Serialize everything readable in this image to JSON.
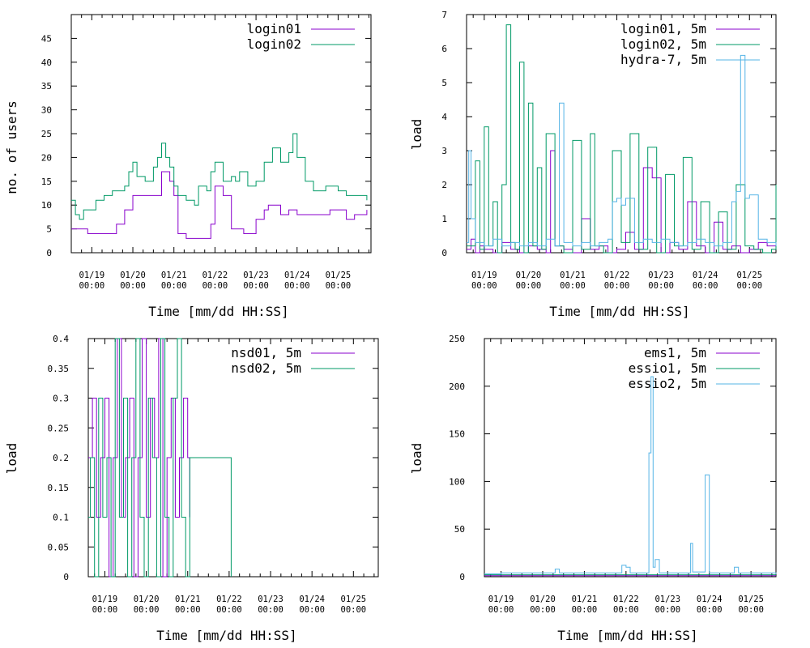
{
  "palette": {
    "login01": "#8800cc",
    "login02": "#009966",
    "hydra": "#55b4e6",
    "frame": "#000000"
  },
  "chart_data": [
    {
      "type": "line",
      "title": "",
      "xlabel": "Time [mm/dd HH:SS]",
      "ylabel": "no. of users",
      "ylim": [
        0,
        50
      ],
      "xlim": [
        -0.5,
        6.8
      ],
      "yticks": [
        0,
        5,
        10,
        15,
        20,
        25,
        30,
        35,
        40,
        45
      ],
      "yticklabels": [
        "0",
        "5",
        "10",
        "15",
        "20",
        "25",
        "30",
        "35",
        "40",
        "45"
      ],
      "xticks": [
        0,
        1,
        2,
        3,
        4,
        5,
        6
      ],
      "xticklabels": [
        [
          "01/19",
          "00:00"
        ],
        [
          "01/20",
          "00:00"
        ],
        [
          "01/21",
          "00:00"
        ],
        [
          "01/22",
          "00:00"
        ],
        [
          "01/23",
          "00:00"
        ],
        [
          "01/24",
          "00:00"
        ],
        [
          "01/25",
          "00:00"
        ]
      ],
      "legend_position": "top-right",
      "series": [
        {
          "name": "login01",
          "color": "#8800cc",
          "x": [
            -0.5,
            -0.2,
            -0.1,
            0.3,
            0.6,
            0.8,
            1.0,
            1.4,
            1.7,
            1.9,
            2.0,
            2.1,
            2.3,
            2.5,
            2.9,
            3.0,
            3.2,
            3.4,
            3.7,
            3.8,
            4.0,
            4.2,
            4.3,
            4.5,
            4.6,
            4.8,
            5.0,
            5.5,
            5.8,
            6.2,
            6.4,
            6.7
          ],
          "y": [
            5,
            5,
            4,
            4,
            6,
            9,
            12,
            12,
            17,
            15,
            12,
            4,
            3,
            3,
            6,
            14,
            12,
            5,
            4,
            4,
            7,
            9,
            10,
            10,
            8,
            9,
            8,
            8,
            9,
            7,
            8,
            9
          ]
        },
        {
          "name": "login02",
          "color": "#009966",
          "x": [
            -0.5,
            -0.4,
            -0.3,
            -0.2,
            0.1,
            0.3,
            0.5,
            0.8,
            0.9,
            1.0,
            1.1,
            1.3,
            1.5,
            1.6,
            1.7,
            1.8,
            1.9,
            2.0,
            2.1,
            2.3,
            2.5,
            2.6,
            2.8,
            2.9,
            3.0,
            3.2,
            3.4,
            3.5,
            3.6,
            3.8,
            4.0,
            4.2,
            4.4,
            4.6,
            4.8,
            4.9,
            5.0,
            5.2,
            5.4,
            5.7,
            6.0,
            6.2,
            6.4,
            6.7
          ],
          "y": [
            11,
            8,
            7,
            9,
            11,
            12,
            13,
            14,
            17,
            19,
            16,
            15,
            18,
            20,
            23,
            20,
            18,
            14,
            12,
            11,
            10,
            14,
            13,
            17,
            19,
            15,
            16,
            15,
            17,
            14,
            15,
            19,
            22,
            19,
            21,
            25,
            20,
            15,
            13,
            14,
            13,
            12,
            12,
            11
          ]
        }
      ]
    },
    {
      "type": "line",
      "title": "",
      "xlabel": "Time [mm/dd HH:SS]",
      "ylabel": "load",
      "ylim": [
        0,
        7
      ],
      "xlim": [
        -0.4,
        6.6
      ],
      "yticks": [
        0,
        1,
        2,
        3,
        4,
        5,
        6,
        7
      ],
      "yticklabels": [
        "0",
        "1",
        "2",
        "3",
        "4",
        "5",
        "6",
        "7"
      ],
      "xticks": [
        0,
        1,
        2,
        3,
        4,
        5,
        6
      ],
      "xticklabels": [
        [
          "01/19",
          "00:00"
        ],
        [
          "01/20",
          "00:00"
        ],
        [
          "01/21",
          "00:00"
        ],
        [
          "01/22",
          "00:00"
        ],
        [
          "01/23",
          "00:00"
        ],
        [
          "01/24",
          "00:00"
        ],
        [
          "01/25",
          "00:00"
        ]
      ],
      "legend_position": "top-right",
      "series": [
        {
          "name": "login01, 5m",
          "color": "#8800cc",
          "x": [
            -0.4,
            -0.3,
            -0.2,
            -0.1,
            0.0,
            0.2,
            0.4,
            0.6,
            0.8,
            1.0,
            1.2,
            1.4,
            1.5,
            1.6,
            1.8,
            2.0,
            2.2,
            2.4,
            2.6,
            2.8,
            3.0,
            3.2,
            3.4,
            3.6,
            3.8,
            4.0,
            4.2,
            4.4,
            4.6,
            4.8,
            5.0,
            5.2,
            5.4,
            5.6,
            5.8,
            6.0,
            6.2,
            6.4,
            6.6
          ],
          "y": [
            0.1,
            0.4,
            0.0,
            0.2,
            0.1,
            0.0,
            0.3,
            0.1,
            0.0,
            0.2,
            0.1,
            0.0,
            3.0,
            0.2,
            0.1,
            0.0,
            1.0,
            0.1,
            0.2,
            0.0,
            0.1,
            0.6,
            0.1,
            2.5,
            2.2,
            0.0,
            0.3,
            0.1,
            1.5,
            0.2,
            0.0,
            0.9,
            0.1,
            0.2,
            0.0,
            0.1,
            0.3,
            0.2,
            1.0
          ]
        },
        {
          "name": "login02, 5m",
          "color": "#009966",
          "x": [
            -0.4,
            -0.2,
            -0.1,
            0.0,
            0.1,
            0.2,
            0.3,
            0.4,
            0.5,
            0.6,
            0.7,
            0.8,
            0.9,
            1.0,
            1.1,
            1.2,
            1.3,
            1.4,
            1.6,
            1.8,
            2.0,
            2.2,
            2.4,
            2.5,
            2.7,
            2.9,
            3.1,
            3.3,
            3.5,
            3.7,
            3.9,
            4.1,
            4.3,
            4.5,
            4.7,
            4.9,
            5.1,
            5.3,
            5.5,
            5.7,
            5.9,
            6.1,
            6.3,
            6.5,
            6.6
          ],
          "y": [
            0.2,
            2.7,
            0.1,
            3.7,
            0.2,
            1.5,
            0.0,
            2.0,
            6.7,
            0.3,
            0.1,
            5.6,
            0.0,
            4.4,
            0.2,
            2.5,
            0.1,
            3.5,
            0.2,
            0.0,
            3.3,
            0.1,
            3.5,
            0.2,
            0.0,
            3.0,
            0.3,
            3.5,
            0.1,
            3.1,
            0.0,
            2.3,
            0.2,
            2.8,
            0.1,
            1.5,
            0.0,
            1.2,
            0.1,
            2.0,
            0.2,
            0.1,
            0.0,
            0.1,
            2.0
          ]
        },
        {
          "name": "hydra-7, 5m",
          "color": "#55b4e6",
          "x": [
            -0.4,
            -0.35,
            -0.3,
            -0.2,
            0.0,
            0.2,
            0.4,
            0.6,
            0.8,
            1.0,
            1.2,
            1.4,
            1.6,
            1.7,
            1.8,
            2.0,
            2.2,
            2.4,
            2.6,
            2.8,
            2.9,
            3.0,
            3.1,
            3.2,
            3.4,
            3.6,
            3.8,
            4.0,
            4.2,
            4.4,
            4.6,
            4.8,
            5.0,
            5.2,
            5.4,
            5.6,
            5.7,
            5.8,
            5.9,
            6.0,
            6.2,
            6.4,
            6.6
          ],
          "y": [
            0.3,
            3.0,
            1.0,
            0.3,
            0.2,
            0.4,
            0.2,
            0.3,
            0.2,
            0.3,
            0.2,
            0.4,
            0.2,
            4.4,
            0.3,
            0.2,
            0.3,
            0.2,
            0.3,
            0.4,
            1.5,
            1.6,
            1.4,
            1.6,
            0.3,
            0.4,
            0.3,
            0.4,
            0.3,
            0.2,
            0.3,
            0.4,
            0.3,
            0.2,
            0.3,
            1.5,
            1.8,
            5.8,
            1.6,
            1.7,
            0.4,
            0.3,
            0.2
          ]
        }
      ]
    },
    {
      "type": "line",
      "title": "",
      "xlabel": "Time [mm/dd HH:SS]",
      "ylabel": "load",
      "ylim": [
        0,
        0.4
      ],
      "xlim": [
        -0.4,
        6.6
      ],
      "yticks": [
        0,
        0.05,
        0.1,
        0.15,
        0.2,
        0.25,
        0.3,
        0.35,
        0.4
      ],
      "yticklabels": [
        "0",
        "0.05",
        "0.1",
        "0.15",
        "0.2",
        "0.25",
        "0.3",
        "0.35",
        "0.4"
      ],
      "xticks": [
        0,
        1,
        2,
        3,
        4,
        5,
        6
      ],
      "xticklabels": [
        [
          "01/19",
          "00:00"
        ],
        [
          "01/20",
          "00:00"
        ],
        [
          "01/21",
          "00:00"
        ],
        [
          "01/22",
          "00:00"
        ],
        [
          "01/23",
          "00:00"
        ],
        [
          "01/24",
          "00:00"
        ],
        [
          "01/25",
          "00:00"
        ]
      ],
      "legend_position": "top-right",
      "series": [
        {
          "name": "nsd01, 5m",
          "color": "#8800cc",
          "x": [
            -0.4,
            -0.3,
            -0.2,
            -0.1,
            0.0,
            0.1,
            0.2,
            0.3,
            0.4,
            0.5,
            0.6,
            0.7,
            0.8,
            0.9,
            1.0,
            1.1,
            1.2,
            1.3,
            1.4,
            1.5,
            1.6,
            1.7,
            1.8,
            1.9,
            2.0,
            2.05
          ],
          "y": [
            0.2,
            0.3,
            0.1,
            0.2,
            0.3,
            0.0,
            0.2,
            0.4,
            0.1,
            0.2,
            0.3,
            0.0,
            0.2,
            0.4,
            0.1,
            0.3,
            0.2,
            0.4,
            0.0,
            0.2,
            0.3,
            0.1,
            0.2,
            0.3,
            0.2,
            0.1
          ]
        },
        {
          "name": "nsd02, 5m",
          "color": "#009966",
          "x": [
            -0.4,
            -0.35,
            -0.25,
            -0.15,
            -0.05,
            0.05,
            0.15,
            0.25,
            0.35,
            0.45,
            0.55,
            0.65,
            0.75,
            0.85,
            0.95,
            1.05,
            1.15,
            1.25,
            1.35,
            1.45,
            1.55,
            1.65,
            1.75,
            1.85,
            1.95,
            2.05,
            2.5,
            3.0,
            3.05
          ],
          "y": [
            0.1,
            0.2,
            0.0,
            0.3,
            0.1,
            0.2,
            0.0,
            0.4,
            0.1,
            0.3,
            0.0,
            0.2,
            0.4,
            0.1,
            0.0,
            0.3,
            0.2,
            0.0,
            0.4,
            0.1,
            0.0,
            0.3,
            0.4,
            0.1,
            0.0,
            0.2,
            0.2,
            0.2,
            0.0
          ]
        }
      ]
    },
    {
      "type": "line",
      "title": "",
      "xlabel": "Time [mm/dd HH:SS]",
      "ylabel": "load",
      "ylim": [
        0,
        250
      ],
      "xlim": [
        -0.4,
        6.6
      ],
      "yticks": [
        0,
        50,
        100,
        150,
        200,
        250
      ],
      "yticklabels": [
        "0",
        "50",
        "100",
        "150",
        "200",
        "250"
      ],
      "xticks": [
        0,
        1,
        2,
        3,
        4,
        5,
        6
      ],
      "xticklabels": [
        [
          "01/19",
          "00:00"
        ],
        [
          "01/20",
          "00:00"
        ],
        [
          "01/21",
          "00:00"
        ],
        [
          "01/22",
          "00:00"
        ],
        [
          "01/23",
          "00:00"
        ],
        [
          "01/24",
          "00:00"
        ],
        [
          "01/25",
          "00:00"
        ]
      ],
      "legend_position": "top-right",
      "series": [
        {
          "name": "ems1, 5m",
          "color": "#8800cc",
          "x": [
            -0.4,
            0.5,
            1.5,
            2.5,
            3.5,
            4.5,
            5.5,
            6.6
          ],
          "y": [
            1,
            1,
            1,
            1,
            1,
            1,
            1,
            1
          ]
        },
        {
          "name": "essio1, 5m",
          "color": "#009966",
          "x": [
            -0.4,
            0.5,
            1.5,
            2.5,
            3.5,
            4.5,
            5.5,
            6.6
          ],
          "y": [
            2,
            2,
            2,
            2,
            2,
            2,
            2,
            2
          ]
        },
        {
          "name": "essio2, 5m",
          "color": "#55b4e6",
          "x": [
            -0.4,
            0.0,
            1.2,
            1.3,
            1.4,
            2.8,
            2.9,
            3.0,
            3.1,
            3.4,
            3.55,
            3.6,
            3.65,
            3.7,
            3.8,
            4.5,
            4.55,
            4.6,
            4.8,
            4.9,
            5.0,
            5.5,
            5.6,
            5.7,
            6.6
          ],
          "y": [
            3,
            4,
            4,
            8,
            4,
            4,
            12,
            10,
            4,
            4,
            130,
            210,
            10,
            18,
            4,
            4,
            35,
            5,
            5,
            107,
            4,
            4,
            10,
            4,
            3
          ]
        }
      ]
    }
  ]
}
